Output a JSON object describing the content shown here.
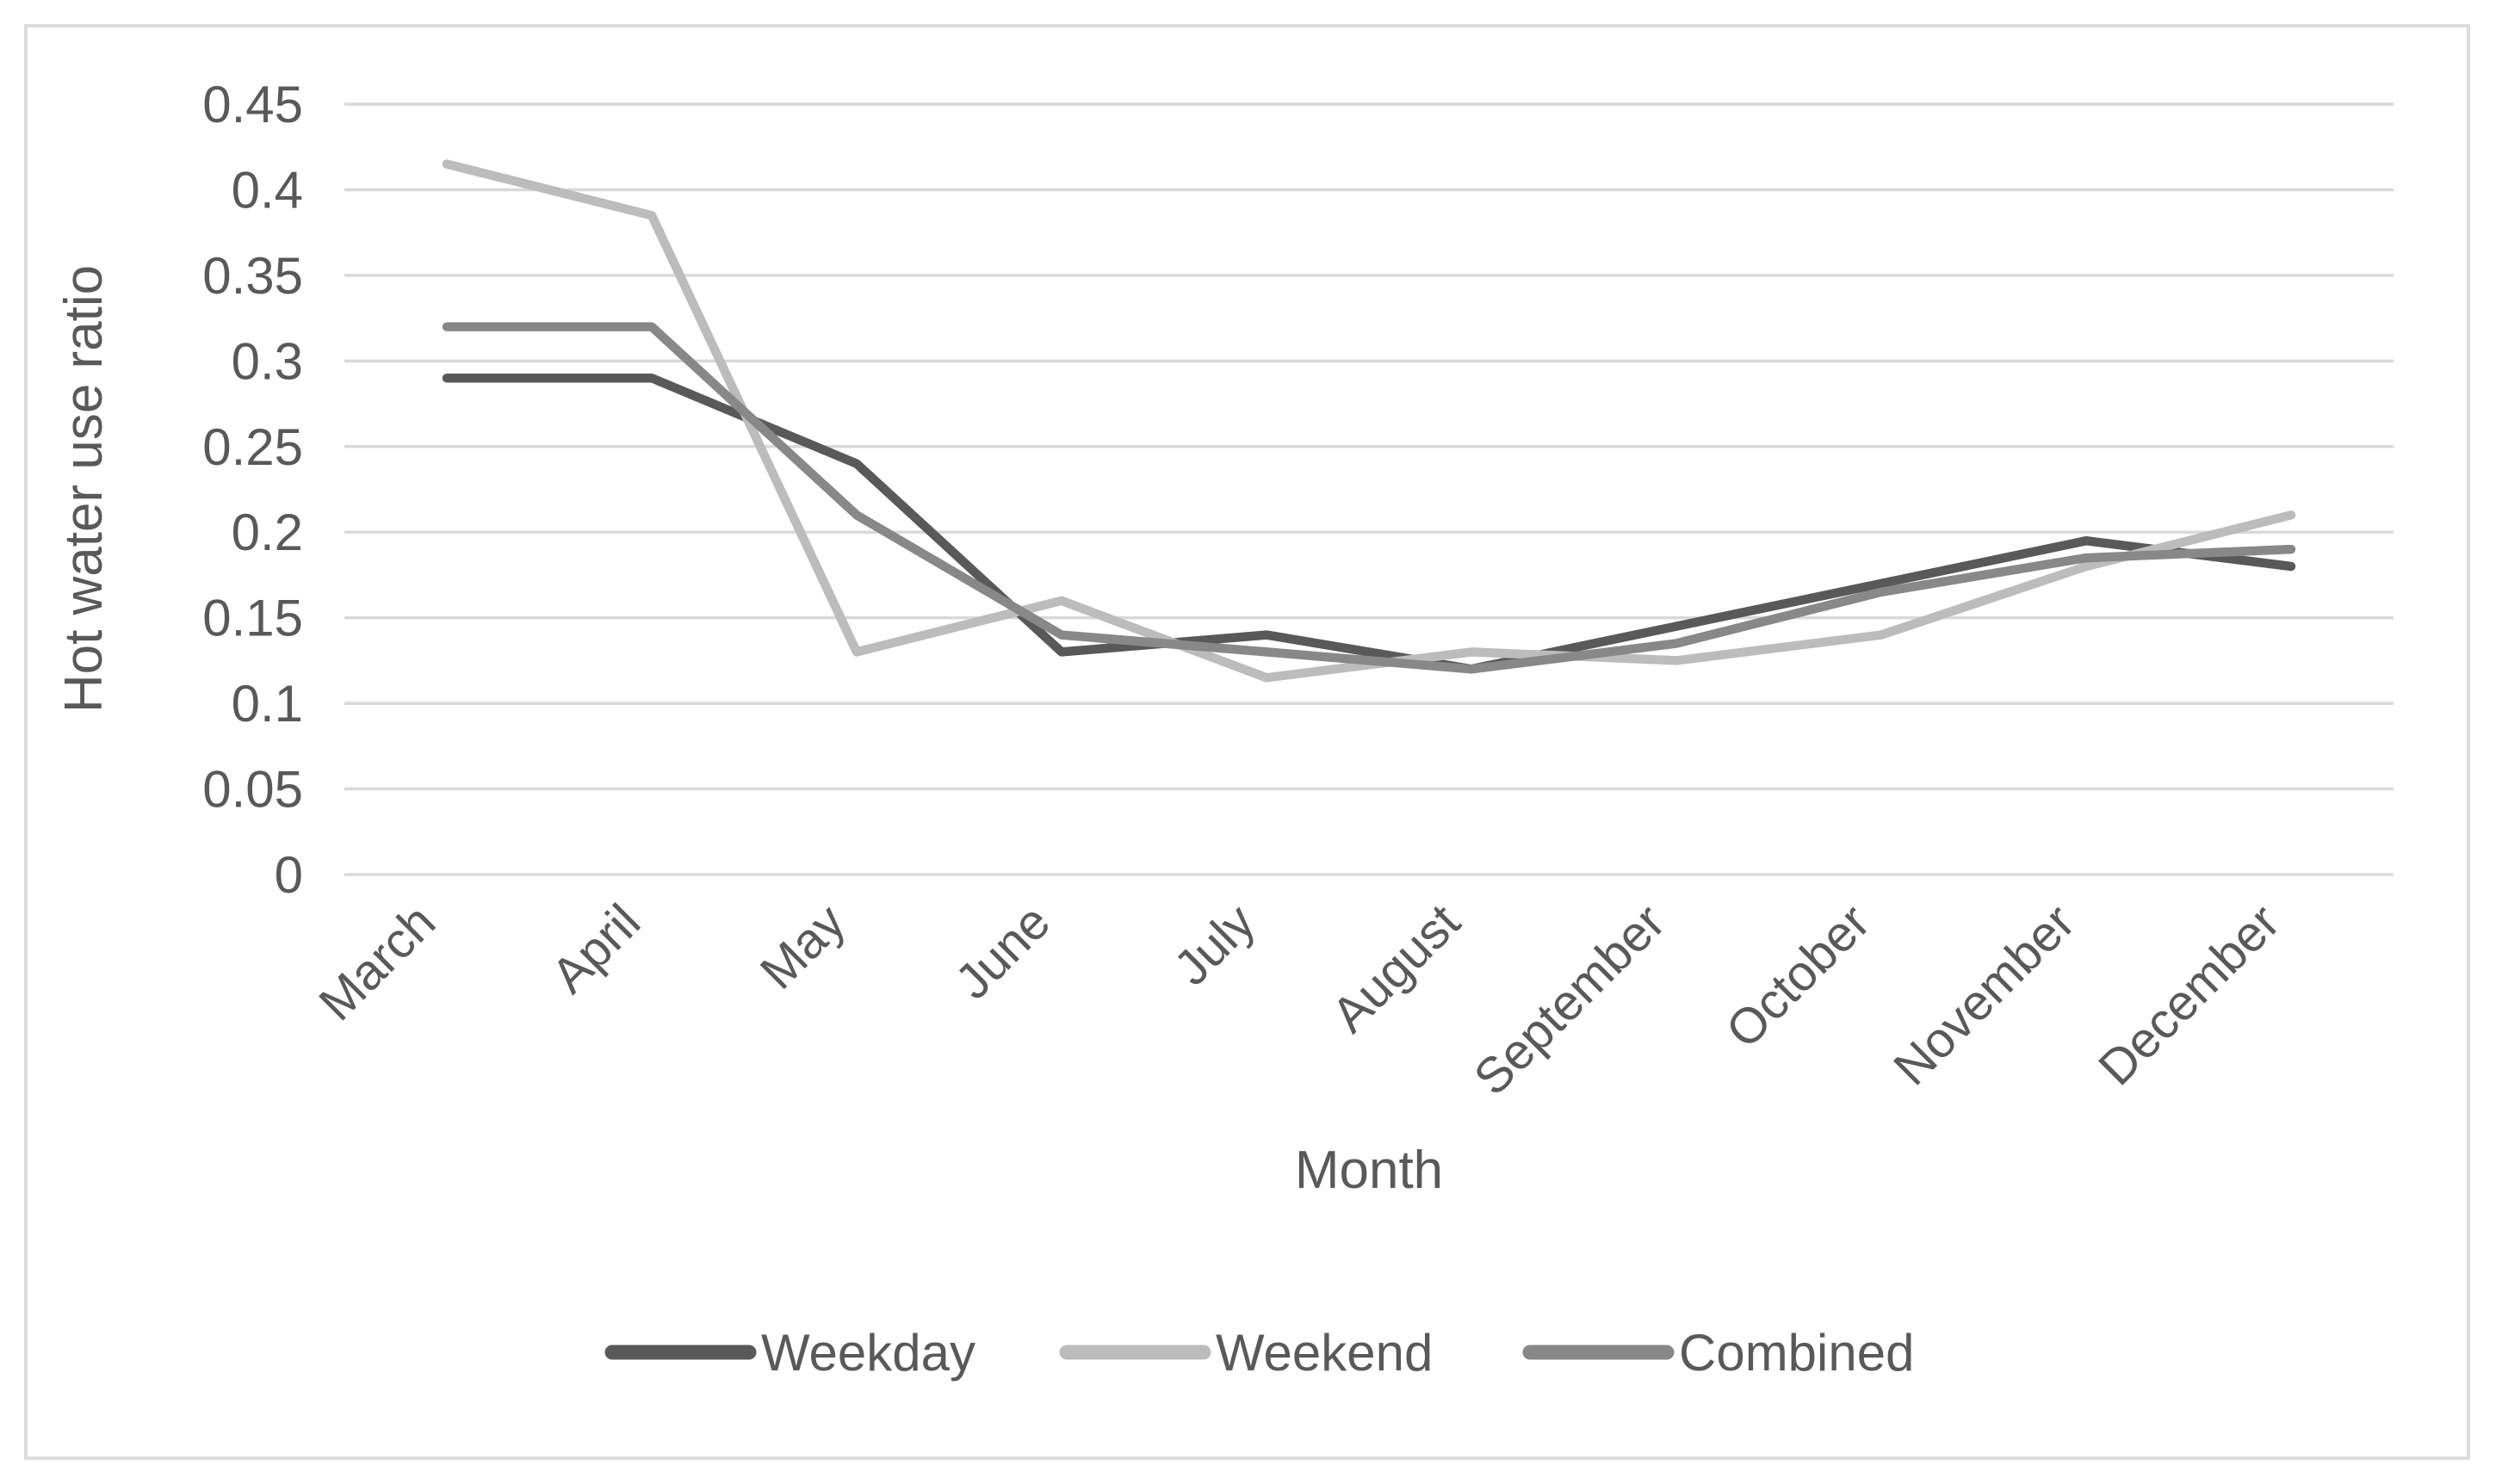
{
  "window": {
    "background_color": "#ffffff",
    "border_color": "#dcdcdc"
  },
  "chart_data": {
    "type": "line",
    "title": "",
    "xlabel": "Month",
    "ylabel": "Hot water use ratio",
    "categories": [
      "March",
      "April",
      "May",
      "June",
      "July",
      "August",
      "September",
      "October",
      "November",
      "December"
    ],
    "series": [
      {
        "name": "Weekday",
        "color": "#595959",
        "values": [
          0.29,
          0.29,
          0.24,
          0.13,
          0.14,
          0.12,
          0.145,
          0.17,
          0.195,
          0.18
        ]
      },
      {
        "name": "Weekend",
        "color": "#bcbcbc",
        "values": [
          0.415,
          0.385,
          0.13,
          0.16,
          0.115,
          0.13,
          0.125,
          0.14,
          0.18,
          0.21
        ]
      },
      {
        "name": "Combined",
        "color": "#888888",
        "values": [
          0.32,
          0.32,
          0.21,
          0.14,
          0.13,
          0.12,
          0.135,
          0.165,
          0.185,
          0.19
        ]
      }
    ],
    "ylim": [
      0,
      0.45
    ],
    "ytick_step": 0.05,
    "ytick_labels": [
      "0",
      "0.05",
      "0.1",
      "0.15",
      "0.2",
      "0.25",
      "0.3",
      "0.35",
      "0.4",
      "0.45"
    ],
    "grid": "horizontal",
    "gridline_color": "#d9d9d9",
    "text_color": "#595959",
    "legend_position": "bottom",
    "x_tick_label_rotation_deg": -45
  }
}
